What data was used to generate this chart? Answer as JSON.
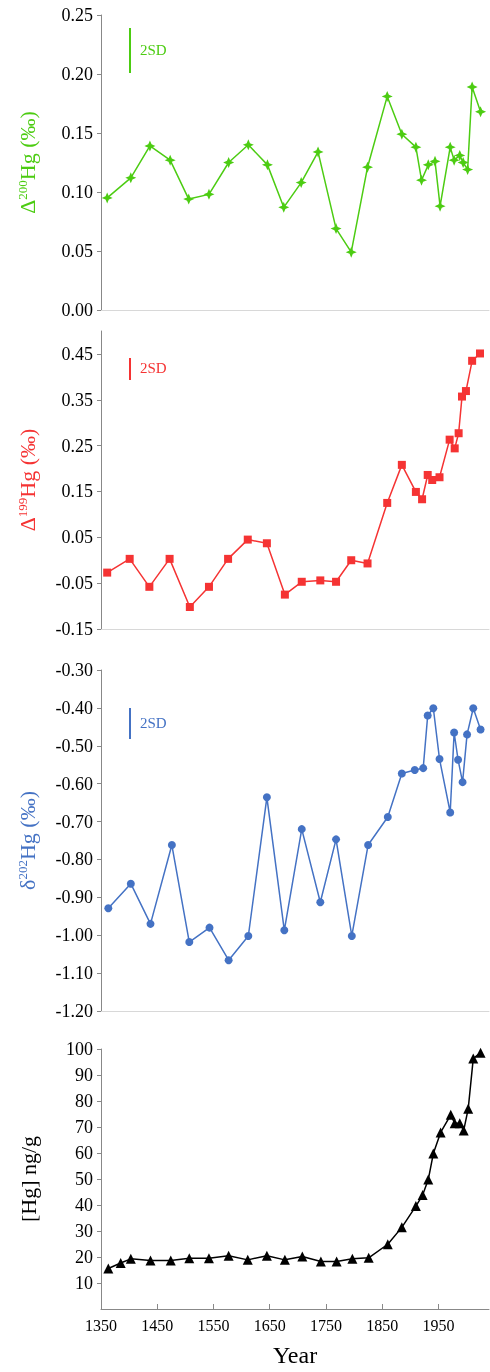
{
  "chart_data": [
    {
      "type": "line",
      "ylabel": "Δ$^{200}$Hg (‰)",
      "xlim": [
        1350,
        2040
      ],
      "xticks": [
        1350,
        1450,
        1550,
        1650,
        1750,
        1850,
        1950
      ],
      "ylim": [
        0,
        0.25
      ],
      "yticks": [
        {
          "value": 0,
          "label": "0.00"
        },
        0.05,
        {
          "value": 0.1,
          "label": "0.10"
        },
        0.15,
        {
          "value": 0.2,
          "label": "0.20"
        },
        0.25
      ],
      "tick_labels": "y",
      "line_style": "solid",
      "series": [
        {
          "color": "#4ccc12",
          "marker": "star",
          "x": [
            1361,
            1403,
            1437,
            1473,
            1506,
            1542,
            1577,
            1612,
            1646,
            1675,
            1706,
            1736,
            1768,
            1795,
            1824,
            1859,
            1885,
            1910,
            1920,
            1932,
            1944,
            1953,
            1971,
            1978,
            1988,
            1994,
            2002,
            2010,
            2025
          ],
          "values": [
            0.095,
            0.112,
            0.139,
            0.127,
            0.094,
            0.098,
            0.125,
            0.14,
            0.123,
            0.087,
            0.108,
            0.134,
            0.069,
            0.049,
            0.121,
            0.181,
            0.149,
            0.138,
            0.11,
            0.123,
            0.126,
            0.088,
            0.138,
            0.127,
            0.131,
            0.125,
            0.119,
            0.189,
            0.168
          ]
        }
      ],
      "annotations": [
        "2SD"
      ]
    },
    {
      "type": "line",
      "ylabel": "Δ$^{199}$Hg (‰)",
      "xlim": [
        1350,
        2040
      ],
      "xticks": [
        1350,
        1450,
        1550,
        1650,
        1750,
        1850,
        1950
      ],
      "ylim": [
        -0.15,
        0.5
      ],
      "yticks": [
        -0.15,
        -0.05,
        0.05,
        0.15,
        0.25,
        0.35,
        0.45
      ],
      "tick_labels": "y",
      "line_style": "solid",
      "series": [
        {
          "color": "#f53333",
          "marker": "square",
          "x": [
            1361,
            1401,
            1436,
            1472,
            1508,
            1542,
            1576,
            1611,
            1645,
            1677,
            1707,
            1740,
            1768,
            1795,
            1824,
            1859,
            1885,
            1910,
            1921,
            1931,
            1939,
            1952,
            1970,
            1979,
            1986,
            1992,
            1999,
            2010,
            2024
          ],
          "values": [
            -0.027,
            0.003,
            -0.058,
            0.003,
            -0.102,
            -0.058,
            0.003,
            0.045,
            0.037,
            -0.075,
            -0.047,
            -0.044,
            -0.047,
            0.0,
            -0.007,
            0.125,
            0.208,
            0.149,
            0.133,
            0.186,
            0.175,
            0.181,
            0.263,
            0.244,
            0.277,
            0.357,
            0.369,
            0.435,
            0.451
          ]
        }
      ],
      "annotations": [
        "2SD"
      ]
    },
    {
      "type": "line",
      "ylabel": "δ$^{202}$Hg (‰)",
      "xlim": [
        1350,
        2040
      ],
      "xticks": [
        1350,
        1450,
        1550,
        1650,
        1750,
        1850,
        1950
      ],
      "ylim": [
        -1.2,
        -0.3
      ],
      "yticks": [
        {
          "value": -1.2,
          "label": "-1.20"
        },
        {
          "value": -1.1,
          "label": "-1.10"
        },
        {
          "value": -1.0,
          "label": "-1.00"
        },
        {
          "value": -0.9,
          "label": "-0.90"
        },
        {
          "value": -0.8,
          "label": "-0.80"
        },
        {
          "value": -0.7,
          "label": "-0.70"
        },
        {
          "value": -0.6,
          "label": "-0.60"
        },
        {
          "value": -0.5,
          "label": "-0.50"
        },
        {
          "value": -0.4,
          "label": "-0.40"
        },
        {
          "value": -0.3,
          "label": "-0.30"
        }
      ],
      "tick_labels": "y",
      "line_style": "solid",
      "series": [
        {
          "color": "#4472c4",
          "marker": "circle",
          "x": [
            1363,
            1403,
            1438,
            1476,
            1507,
            1543,
            1577,
            1612,
            1645,
            1676,
            1707,
            1740,
            1768,
            1796,
            1825,
            1860,
            1885,
            1908,
            1923,
            1931,
            1941,
            1952,
            1971,
            1978,
            1985,
            1993,
            2001,
            2012,
            2025
          ],
          "values": [
            -0.929,
            -0.864,
            -0.97,
            -0.762,
            -1.018,
            -0.98,
            -1.066,
            -1.002,
            -0.636,
            -0.987,
            -0.72,
            -0.913,
            -0.747,
            -1.002,
            -0.762,
            -0.688,
            -0.573,
            -0.564,
            -0.559,
            -0.42,
            -0.401,
            -0.535,
            -0.676,
            -0.465,
            -0.537,
            -0.596,
            -0.47,
            -0.401,
            -0.457
          ]
        }
      ],
      "annotations": [
        "2SD"
      ]
    },
    {
      "type": "line",
      "xlabel": "Year",
      "ylabel": "[Hg] ng/g",
      "xlim": [
        1350,
        2040
      ],
      "xticks": [
        1350,
        1450,
        1550,
        1650,
        1750,
        1850,
        1950
      ],
      "ylim": [
        0,
        100
      ],
      "yticks": [
        10,
        20,
        30,
        40,
        50,
        60,
        70,
        80,
        90,
        100
      ],
      "line_style": "solid",
      "series": [
        {
          "color": "#000000",
          "marker": "triangle",
          "x": [
            1363,
            1385,
            1403,
            1438,
            1474,
            1507,
            1542,
            1577,
            1611,
            1645,
            1677,
            1708,
            1741,
            1769,
            1797,
            1826,
            1860,
            1885,
            1910,
            1922,
            1932,
            1941,
            1954,
            1972,
            1979,
            1988,
            1995,
            2003,
            2012,
            2025
          ],
          "values": [
            15.6,
            17.7,
            19.3,
            18.7,
            18.7,
            19.5,
            19.5,
            20.5,
            18.9,
            20.5,
            18.9,
            20.2,
            18.3,
            18.3,
            19.3,
            19.7,
            24.9,
            31.4,
            39.6,
            43.8,
            49.8,
            59.8,
            67.9,
            74.7,
            71.4,
            71.4,
            68.7,
            77,
            96.3,
            98.6
          ]
        }
      ]
    }
  ]
}
